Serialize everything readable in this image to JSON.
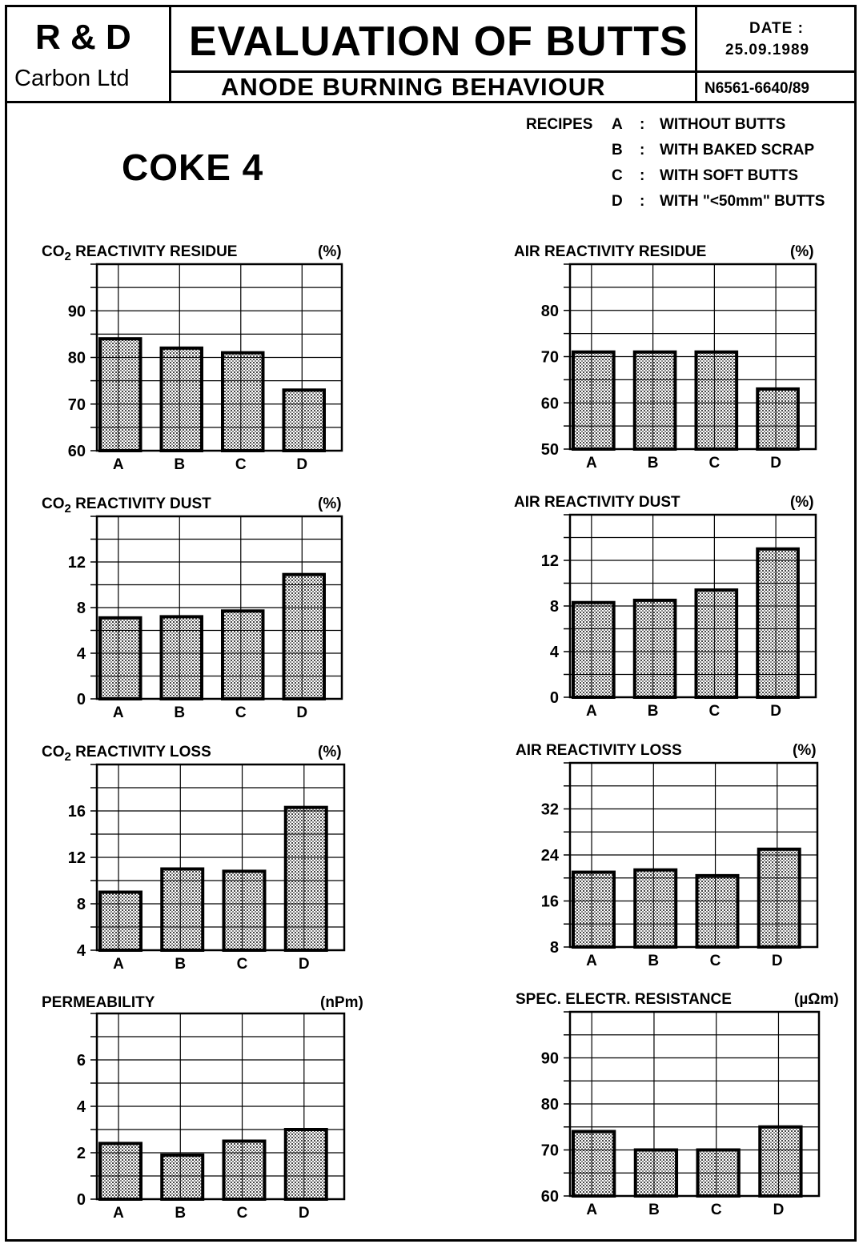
{
  "header": {
    "company_line1": "R & D",
    "company_line2": "Carbon Ltd",
    "title": "EVALUATION OF BUTTS",
    "subtitle": "ANODE BURNING BEHAVIOUR",
    "date_label": "DATE :",
    "date_value": "25.09.1989",
    "ref": "N6561-6640/89"
  },
  "coke_label": "COKE  4",
  "legend": {
    "title": "RECIPES",
    "items": [
      {
        "key": "A",
        "sep": ":",
        "text": "WITHOUT BUTTS"
      },
      {
        "key": "B",
        "sep": ":",
        "text": "WITH BAKED SCRAP"
      },
      {
        "key": "C",
        "sep": ":",
        "text": "WITH SOFT BUTTS"
      },
      {
        "key": "D",
        "sep": ":",
        "text": "WITH \"<50mm\" BUTTS"
      }
    ]
  },
  "chart_data": [
    {
      "type": "bar",
      "title": "CO2 REACTIVITY RESIDUE",
      "unit": "(%)",
      "categories": [
        "A",
        "B",
        "C",
        "D"
      ],
      "values": [
        84,
        82,
        81,
        73
      ],
      "ylim": [
        60,
        100
      ],
      "yticks": [
        60,
        70,
        80,
        90
      ],
      "grid": true
    },
    {
      "type": "bar",
      "title": "AIR REACTIVITY RESIDUE",
      "unit": "(%)",
      "categories": [
        "A",
        "B",
        "C",
        "D"
      ],
      "values": [
        71,
        71,
        71,
        63
      ],
      "ylim": [
        50,
        90
      ],
      "yticks": [
        50,
        60,
        70,
        80
      ],
      "grid": true
    },
    {
      "type": "bar",
      "title": "CO2 REACTIVITY DUST",
      "unit": "(%)",
      "categories": [
        "A",
        "B",
        "C",
        "D"
      ],
      "values": [
        7.1,
        7.2,
        7.7,
        10.9
      ],
      "ylim": [
        0,
        16
      ],
      "yticks": [
        0,
        4,
        8,
        12
      ],
      "grid": true
    },
    {
      "type": "bar",
      "title": "AIR REACTIVITY DUST",
      "unit": "(%)",
      "categories": [
        "A",
        "B",
        "C",
        "D"
      ],
      "values": [
        8.3,
        8.5,
        9.4,
        13.0
      ],
      "ylim": [
        0,
        16
      ],
      "yticks": [
        0,
        4,
        8,
        12
      ],
      "grid": true
    },
    {
      "type": "bar",
      "title": "CO2 REACTIVITY LOSS",
      "unit": "(%)",
      "categories": [
        "A",
        "B",
        "C",
        "D"
      ],
      "values": [
        9.0,
        11.0,
        10.8,
        16.3
      ],
      "ylim": [
        4,
        20
      ],
      "yticks": [
        4,
        8,
        12,
        16
      ],
      "grid": true
    },
    {
      "type": "bar",
      "title": "AIR REACTIVITY LOSS",
      "unit": "(%)",
      "categories": [
        "A",
        "B",
        "C",
        "D"
      ],
      "values": [
        21,
        21.4,
        20.4,
        25
      ],
      "ylim": [
        8,
        40
      ],
      "yticks": [
        8,
        16,
        24,
        32
      ],
      "grid": true
    },
    {
      "type": "bar",
      "title": "PERMEABILITY",
      "unit": "(nPm)",
      "categories": [
        "A",
        "B",
        "C",
        "D"
      ],
      "values": [
        2.4,
        1.9,
        2.5,
        3.0
      ],
      "ylim": [
        0,
        8
      ],
      "yticks": [
        0,
        2,
        4,
        6
      ],
      "grid": true
    },
    {
      "type": "bar",
      "title": "SPEC. ELECTR. RESISTANCE",
      "unit": "(µΩm)",
      "categories": [
        "A",
        "B",
        "C",
        "D"
      ],
      "values": [
        74,
        70,
        70,
        75
      ],
      "ylim": [
        60,
        100
      ],
      "yticks": [
        60,
        70,
        80,
        90
      ],
      "grid": true
    }
  ]
}
